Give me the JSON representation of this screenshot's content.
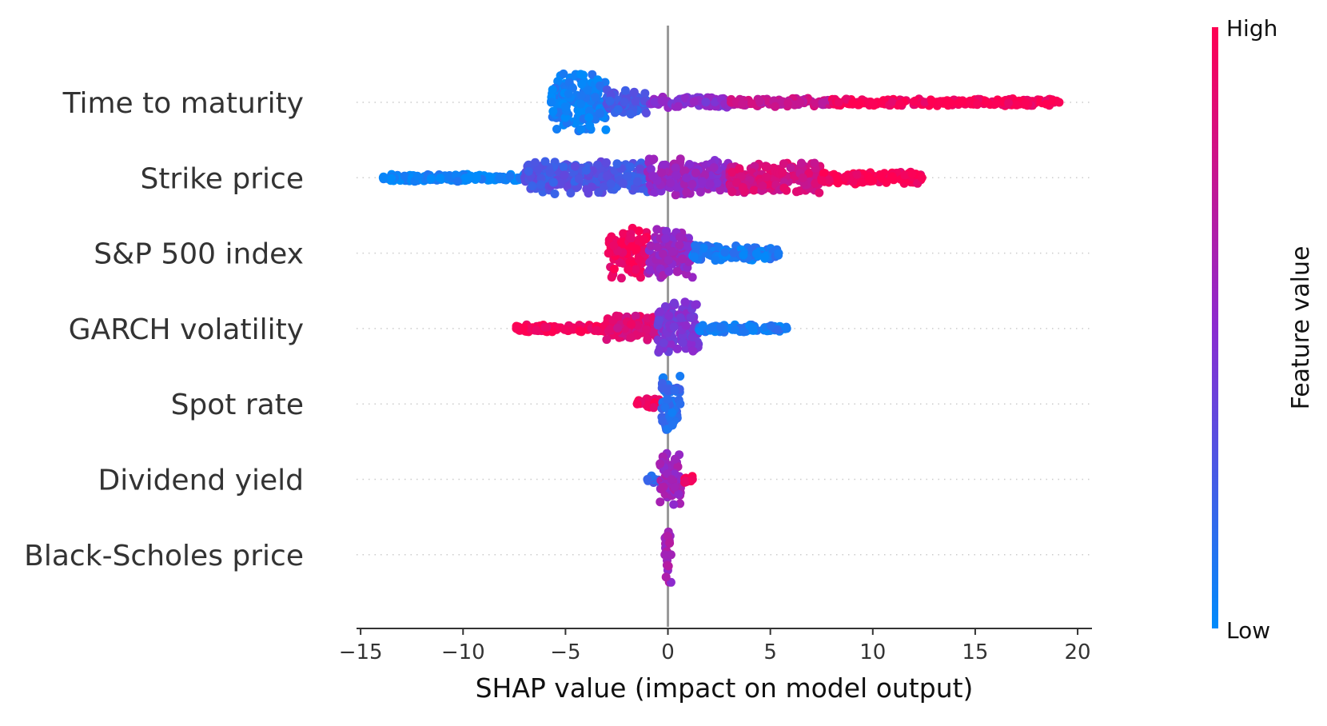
{
  "chart_data": {
    "type": "scatter",
    "subtype": "shap-beeswarm",
    "xlabel": "SHAP value (impact on model output)",
    "xlim": [
      -15.2,
      20.7
    ],
    "xticks": [
      -15,
      -10,
      -5,
      0,
      5,
      10,
      15,
      20
    ],
    "xtick_labels": [
      "−15",
      "−10",
      "−5",
      "0",
      "5",
      "10",
      "15",
      "20"
    ],
    "zero_line": 0,
    "grid": false,
    "colorbar": {
      "title": "Feature value",
      "high_label": "High",
      "low_label": "Low",
      "high_color": "#ff0052",
      "mid_color": "#8b2bd0",
      "low_color": "#008bfb",
      "placement": "right"
    },
    "features": [
      {
        "name": "Time to maturity",
        "min": -5.7,
        "max": 19.1,
        "segments": [
          {
            "from": -5.7,
            "to": -3.0,
            "spread": 0.95,
            "color": 0.05
          },
          {
            "from": -3.0,
            "to": -1.0,
            "spread": 0.45,
            "color": 0.25
          },
          {
            "from": -1.0,
            "to": 3.0,
            "spread": 0.18,
            "color": 0.5
          },
          {
            "from": 3.0,
            "to": 8.0,
            "spread": 0.14,
            "color": 0.75
          },
          {
            "from": 8.0,
            "to": 19.1,
            "spread": 0.12,
            "color": 0.98
          }
        ]
      },
      {
        "name": "Strike price",
        "min": -13.9,
        "max": 12.4,
        "segments": [
          {
            "from": -13.9,
            "to": -7.0,
            "spread": 0.12,
            "color": 0.03
          },
          {
            "from": -7.0,
            "to": -1.0,
            "spread": 0.55,
            "color": 0.28
          },
          {
            "from": -1.0,
            "to": 3.0,
            "spread": 0.6,
            "color": 0.55
          },
          {
            "from": 3.0,
            "to": 7.5,
            "spread": 0.5,
            "color": 0.82
          },
          {
            "from": 7.5,
            "to": 12.4,
            "spread": 0.2,
            "color": 0.98
          }
        ]
      },
      {
        "name": "S&P 500 index",
        "min": -2.9,
        "max": 5.4,
        "segments": [
          {
            "from": -2.9,
            "to": -1.0,
            "spread": 0.85,
            "color": 0.95
          },
          {
            "from": -1.0,
            "to": 1.2,
            "spread": 0.8,
            "color": 0.55
          },
          {
            "from": 1.2,
            "to": 5.4,
            "spread": 0.25,
            "color": 0.08
          }
        ]
      },
      {
        "name": "GARCH volatility",
        "min": -7.4,
        "max": 5.8,
        "segments": [
          {
            "from": -7.4,
            "to": -3.0,
            "spread": 0.12,
            "color": 0.97
          },
          {
            "from": -3.0,
            "to": -0.5,
            "spread": 0.45,
            "color": 0.85
          },
          {
            "from": -0.5,
            "to": 1.5,
            "spread": 0.9,
            "color": 0.45
          },
          {
            "from": 1.5,
            "to": 5.8,
            "spread": 0.15,
            "color": 0.08
          }
        ]
      },
      {
        "name": "Spot rate",
        "min": -1.5,
        "max": 0.6,
        "segments": [
          {
            "from": -1.5,
            "to": -0.3,
            "spread": 0.18,
            "color": 0.97
          },
          {
            "from": -0.3,
            "to": 0.6,
            "spread": 0.95,
            "color": 0.15
          }
        ]
      },
      {
        "name": "Dividend yield",
        "min": -1.0,
        "max": 1.2,
        "segments": [
          {
            "from": -1.0,
            "to": -0.4,
            "spread": 0.12,
            "color": 0.2
          },
          {
            "from": -0.4,
            "to": 0.7,
            "spread": 0.9,
            "color": 0.6
          },
          {
            "from": 0.7,
            "to": 1.2,
            "spread": 0.12,
            "color": 0.95
          }
        ]
      },
      {
        "name": "Black-Scholes price",
        "min": -0.15,
        "max": 0.15,
        "segments": [
          {
            "from": -0.15,
            "to": 0.15,
            "spread": 0.95,
            "color": 0.6
          }
        ]
      }
    ]
  }
}
